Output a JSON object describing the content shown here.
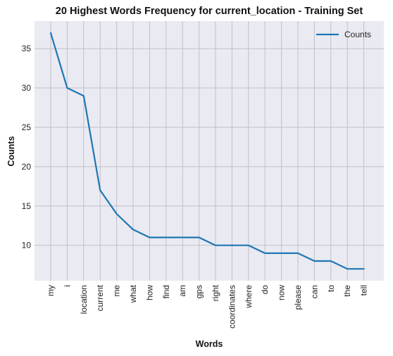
{
  "chart_data": {
    "type": "line",
    "title": "20 Highest Words Frequency for current_location - Training Set",
    "xlabel": "Words",
    "ylabel": "Counts",
    "categories": [
      "my",
      "i",
      "location",
      "current",
      "me",
      "what",
      "how",
      "find",
      "am",
      "gps",
      "right",
      "coordinates",
      "where",
      "do",
      "now",
      "please",
      "can",
      "to",
      "the",
      "tell"
    ],
    "series": [
      {
        "name": "Counts",
        "values": [
          37,
          30,
          29,
          17,
          14,
          12,
          11,
          11,
          11,
          11,
          10,
          10,
          10,
          9,
          9,
          9,
          8,
          8,
          7,
          7
        ],
        "color": "#1f77b4"
      }
    ],
    "ylim": [
      5.5,
      38.5
    ],
    "yticks": [
      "10",
      "15",
      "20",
      "25",
      "30",
      "35"
    ],
    "grid": true,
    "legend": "top-right",
    "plot_background": "#eaeaf2",
    "grid_color": "#c0c0c8"
  }
}
